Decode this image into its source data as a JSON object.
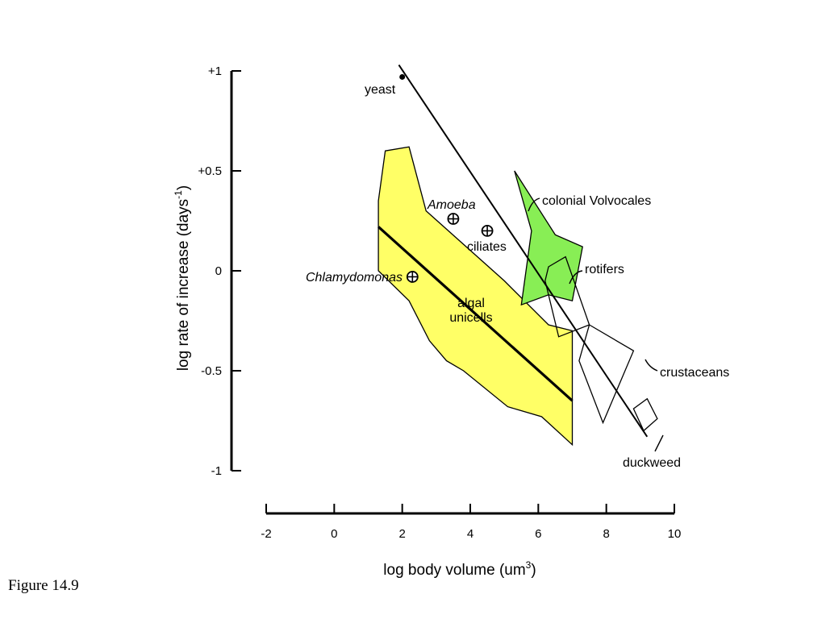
{
  "caption": "Figure 14.9",
  "chart_data": {
    "type": "scatter",
    "title": "",
    "xlabel": "log body volume (um",
    "xlabel_sup": "3",
    "xlabel_end": ")",
    "ylabel": "log rate of increase (days",
    "ylabel_sup": "-1",
    "ylabel_end": ")",
    "xlim": [
      -2,
      10
    ],
    "ylim": [
      -1,
      1
    ],
    "x_ticks": [
      -2,
      0,
      2,
      4,
      6,
      8,
      10
    ],
    "x_tick_labels": [
      "-2",
      "0",
      "2",
      "4",
      "6",
      "8",
      "10"
    ],
    "y_ticks": [
      1,
      0.5,
      0,
      -0.5,
      -1
    ],
    "y_tick_labels": [
      "+1",
      "+0.5",
      "0",
      "-0.5",
      "-1"
    ],
    "colors": {
      "algal": "#ffff66",
      "volvocales": "#88ee55",
      "line": "#000000"
    },
    "points": [
      {
        "label": "yeast",
        "x": 2.0,
        "y": 0.97,
        "marker": "dot"
      },
      {
        "label": "Amoeba",
        "x": 3.5,
        "y": 0.26,
        "marker": "crossed-circle",
        "italic": true
      },
      {
        "label": "ciliates",
        "x": 4.5,
        "y": 0.2,
        "marker": "crossed-circle"
      },
      {
        "label": "Chlamydomonas",
        "x": 2.3,
        "y": -0.03,
        "marker": "crossed-circle",
        "italic": true
      }
    ],
    "regions": [
      {
        "label": "algal unicells",
        "label_lines": [
          "algal",
          "unicells"
        ],
        "fill": "algal",
        "polygon": [
          [
            1.5,
            0.6
          ],
          [
            2.2,
            0.62
          ],
          [
            2.7,
            0.3
          ],
          [
            5.0,
            -0.05
          ],
          [
            6.3,
            -0.27
          ],
          [
            7.0,
            -0.3
          ],
          [
            7.0,
            -0.87
          ],
          [
            6.1,
            -0.73
          ],
          [
            5.1,
            -0.68
          ],
          [
            3.8,
            -0.5
          ],
          [
            3.3,
            -0.45
          ],
          [
            2.8,
            -0.35
          ],
          [
            2.2,
            -0.15
          ],
          [
            1.3,
            0.0
          ],
          [
            1.3,
            0.35
          ]
        ]
      },
      {
        "label": "colonial Volvocales",
        "fill": "volvocales",
        "polygon": [
          [
            5.3,
            0.5
          ],
          [
            6.5,
            0.18
          ],
          [
            7.3,
            0.12
          ],
          [
            7.0,
            -0.15
          ],
          [
            6.3,
            -0.12
          ],
          [
            5.5,
            -0.17
          ],
          [
            5.8,
            0.2
          ]
        ]
      },
      {
        "label": "rotifers",
        "fill": "none",
        "polygon": [
          [
            6.3,
            0.02
          ],
          [
            6.8,
            0.07
          ],
          [
            7.5,
            -0.27
          ],
          [
            6.6,
            -0.33
          ],
          [
            6.2,
            -0.05
          ]
        ]
      },
      {
        "label": "crustaceans",
        "fill": "none",
        "polygon": [
          [
            7.5,
            -0.27
          ],
          [
            8.8,
            -0.4
          ],
          [
            7.9,
            -0.76
          ],
          [
            7.2,
            -0.45
          ]
        ]
      },
      {
        "label": "duckweed",
        "fill": "none",
        "polygon": [
          [
            9.2,
            -0.64
          ],
          [
            9.5,
            -0.74
          ],
          [
            9.1,
            -0.8
          ],
          [
            8.8,
            -0.69
          ]
        ]
      }
    ],
    "lines": [
      {
        "name": "algal regression",
        "x": [
          1.3,
          7.0
        ],
        "y": [
          0.22,
          -0.65
        ],
        "width": "thick"
      },
      {
        "name": "overall trend",
        "x": [
          1.9,
          9.2
        ],
        "y": [
          1.03,
          -0.83
        ],
        "width": "thin"
      }
    ]
  }
}
